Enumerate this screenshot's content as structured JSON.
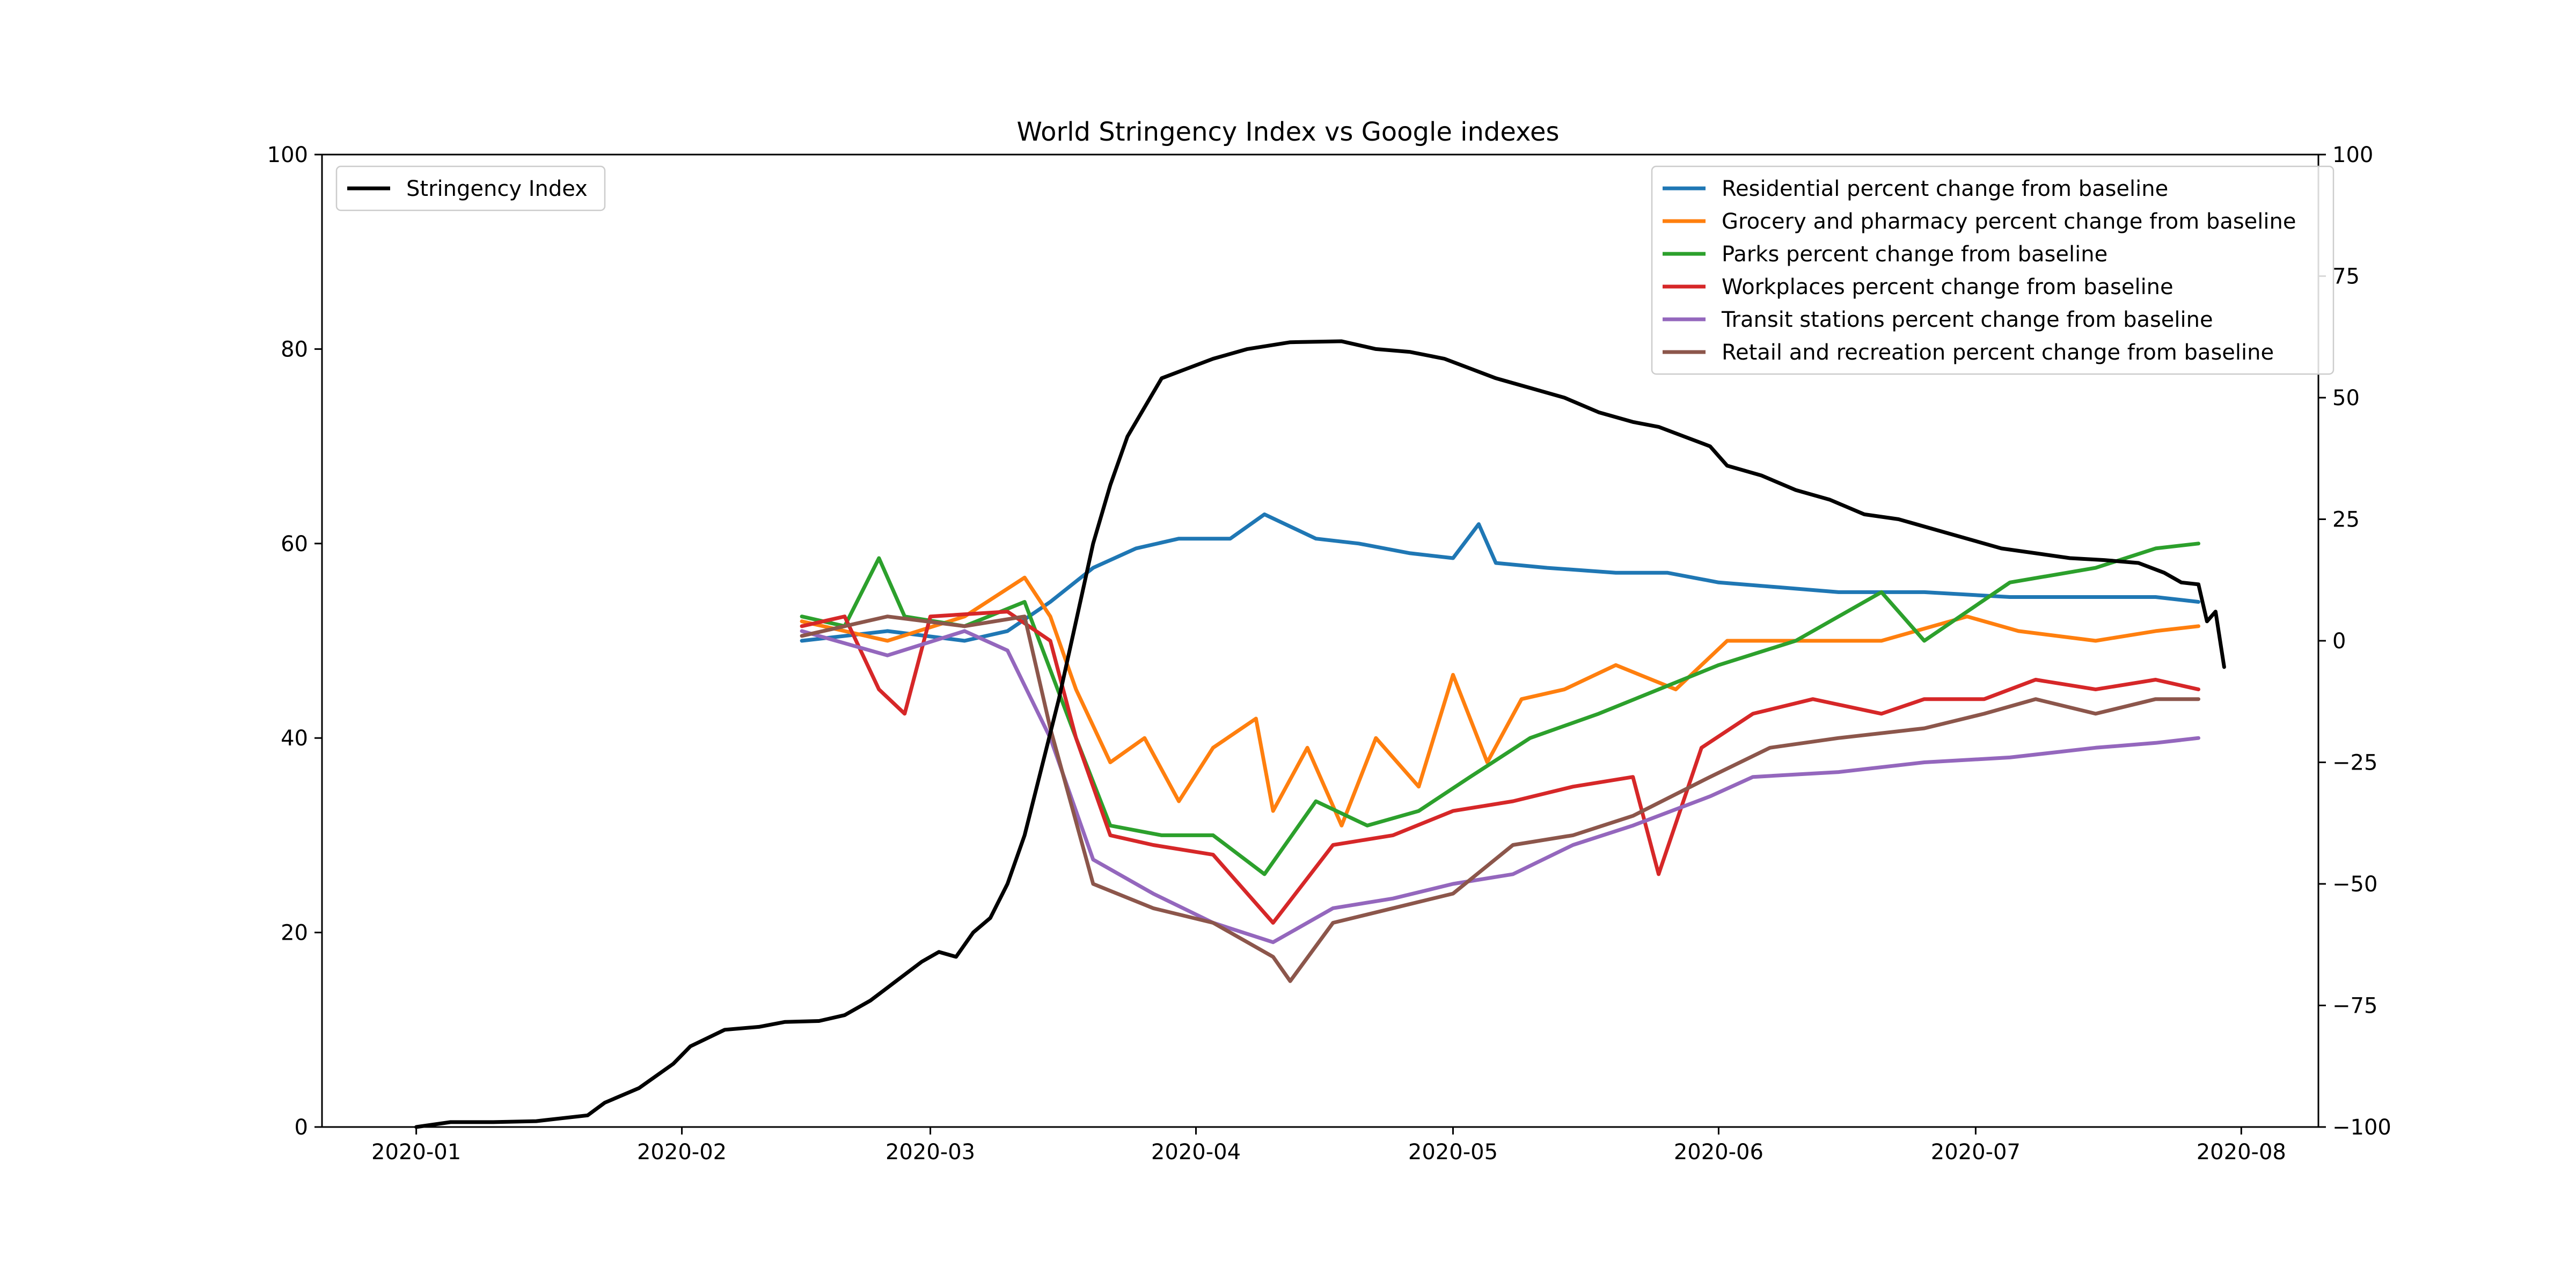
{
  "chart_data": {
    "type": "line",
    "title": "World Stringency Index vs Google indexes",
    "xlabel": "",
    "ylabel_left": "",
    "ylabel_right": "",
    "x_axis": {
      "type": "date",
      "range": [
        "2019-12-21",
        "2020-08-10"
      ],
      "ticks": [
        "2020-01-01",
        "2020-02-01",
        "2020-03-01",
        "2020-04-01",
        "2020-05-01",
        "2020-06-01",
        "2020-07-01",
        "2020-08-01"
      ],
      "tick_labels": [
        "2020-01",
        "2020-02",
        "2020-03",
        "2020-04",
        "2020-05",
        "2020-06",
        "2020-07",
        "2020-08"
      ]
    },
    "y_left": {
      "range": [
        0,
        100
      ],
      "ticks": [
        0,
        20,
        40,
        60,
        80,
        100
      ],
      "tick_labels": [
        "0",
        "20",
        "40",
        "60",
        "80",
        "100"
      ]
    },
    "y_right": {
      "range": [
        -100,
        100
      ],
      "ticks": [
        -100,
        -75,
        -50,
        -25,
        0,
        25,
        50,
        75,
        100
      ],
      "tick_labels": [
        "−100",
        "−75",
        "−50",
        "−25",
        "0",
        "25",
        "50",
        "75",
        "100"
      ]
    },
    "grid": false,
    "legend_left_placement": "upper-left",
    "legend_right_placement": "upper-right",
    "series_left": [
      {
        "name": "Stringency Index",
        "color": "#000000",
        "points": [
          [
            "2020-01-01",
            0.0
          ],
          [
            "2020-01-05",
            0.5
          ],
          [
            "2020-01-10",
            0.5
          ],
          [
            "2020-01-15",
            0.6
          ],
          [
            "2020-01-18",
            0.9
          ],
          [
            "2020-01-21",
            1.2
          ],
          [
            "2020-01-23",
            2.5
          ],
          [
            "2020-01-27",
            4.0
          ],
          [
            "2020-01-31",
            6.5
          ],
          [
            "2020-02-02",
            8.3
          ],
          [
            "2020-02-06",
            10.0
          ],
          [
            "2020-02-10",
            10.3
          ],
          [
            "2020-02-13",
            10.8
          ],
          [
            "2020-02-17",
            10.9
          ],
          [
            "2020-02-20",
            11.5
          ],
          [
            "2020-02-23",
            13.0
          ],
          [
            "2020-02-26",
            15.0
          ],
          [
            "2020-02-29",
            17.0
          ],
          [
            "2020-03-02",
            18.0
          ],
          [
            "2020-03-04",
            17.5
          ],
          [
            "2020-03-06",
            20.0
          ],
          [
            "2020-03-08",
            21.5
          ],
          [
            "2020-03-10",
            25.0
          ],
          [
            "2020-03-12",
            30.0
          ],
          [
            "2020-03-14",
            37.0
          ],
          [
            "2020-03-16",
            44.0
          ],
          [
            "2020-03-18",
            52.0
          ],
          [
            "2020-03-20",
            60.0
          ],
          [
            "2020-03-22",
            66.0
          ],
          [
            "2020-03-24",
            71.0
          ],
          [
            "2020-03-26",
            74.0
          ],
          [
            "2020-03-28",
            77.0
          ],
          [
            "2020-03-31",
            78.0
          ],
          [
            "2020-04-03",
            79.0
          ],
          [
            "2020-04-07",
            80.0
          ],
          [
            "2020-04-12",
            80.7
          ],
          [
            "2020-04-18",
            80.8
          ],
          [
            "2020-04-22",
            80.0
          ],
          [
            "2020-04-26",
            79.7
          ],
          [
            "2020-04-30",
            79.0
          ],
          [
            "2020-05-03",
            78.0
          ],
          [
            "2020-05-06",
            77.0
          ],
          [
            "2020-05-10",
            76.0
          ],
          [
            "2020-05-14",
            75.0
          ],
          [
            "2020-05-18",
            73.5
          ],
          [
            "2020-05-22",
            72.5
          ],
          [
            "2020-05-25",
            72.0
          ],
          [
            "2020-05-28",
            71.0
          ],
          [
            "2020-05-31",
            70.0
          ],
          [
            "2020-06-02",
            68.0
          ],
          [
            "2020-06-06",
            67.0
          ],
          [
            "2020-06-10",
            65.5
          ],
          [
            "2020-06-14",
            64.5
          ],
          [
            "2020-06-18",
            63.0
          ],
          [
            "2020-06-22",
            62.5
          ],
          [
            "2020-06-26",
            61.5
          ],
          [
            "2020-06-30",
            60.5
          ],
          [
            "2020-07-04",
            59.5
          ],
          [
            "2020-07-08",
            59.0
          ],
          [
            "2020-07-12",
            58.5
          ],
          [
            "2020-07-16",
            58.3
          ],
          [
            "2020-07-20",
            58.0
          ],
          [
            "2020-07-23",
            57.0
          ],
          [
            "2020-07-25",
            56.0
          ],
          [
            "2020-07-27",
            55.8
          ],
          [
            "2020-07-28",
            52.0
          ],
          [
            "2020-07-29",
            53.0
          ],
          [
            "2020-07-30",
            47.3
          ]
        ]
      }
    ],
    "series_right": [
      {
        "name": "Residential percent change from baseline",
        "color": "#1f77b4",
        "points": [
          [
            "2020-02-15",
            0
          ],
          [
            "2020-02-25",
            2
          ],
          [
            "2020-03-05",
            0
          ],
          [
            "2020-03-10",
            2
          ],
          [
            "2020-03-15",
            8
          ],
          [
            "2020-03-20",
            15
          ],
          [
            "2020-03-25",
            19
          ],
          [
            "2020-03-30",
            21
          ],
          [
            "2020-04-05",
            21
          ],
          [
            "2020-04-09",
            26
          ],
          [
            "2020-04-15",
            21
          ],
          [
            "2020-04-20",
            20
          ],
          [
            "2020-04-26",
            18
          ],
          [
            "2020-05-01",
            17
          ],
          [
            "2020-05-04",
            24
          ],
          [
            "2020-05-06",
            16
          ],
          [
            "2020-05-12",
            15
          ],
          [
            "2020-05-20",
            14
          ],
          [
            "2020-05-26",
            14
          ],
          [
            "2020-06-01",
            12
          ],
          [
            "2020-06-08",
            11
          ],
          [
            "2020-06-15",
            10
          ],
          [
            "2020-06-25",
            10
          ],
          [
            "2020-07-05",
            9
          ],
          [
            "2020-07-15",
            9
          ],
          [
            "2020-07-22",
            9
          ],
          [
            "2020-07-27",
            8
          ]
        ]
      },
      {
        "name": "Grocery and pharmacy percent change from baseline",
        "color": "#ff7f0e",
        "points": [
          [
            "2020-02-15",
            4
          ],
          [
            "2020-02-25",
            0
          ],
          [
            "2020-03-05",
            5
          ],
          [
            "2020-03-12",
            13
          ],
          [
            "2020-03-15",
            5
          ],
          [
            "2020-03-18",
            -10
          ],
          [
            "2020-03-22",
            -25
          ],
          [
            "2020-03-26",
            -20
          ],
          [
            "2020-03-30",
            -33
          ],
          [
            "2020-04-03",
            -22
          ],
          [
            "2020-04-08",
            -16
          ],
          [
            "2020-04-10",
            -35
          ],
          [
            "2020-04-14",
            -22
          ],
          [
            "2020-04-18",
            -38
          ],
          [
            "2020-04-22",
            -20
          ],
          [
            "2020-04-27",
            -30
          ],
          [
            "2020-05-01",
            -7
          ],
          [
            "2020-05-05",
            -25
          ],
          [
            "2020-05-09",
            -12
          ],
          [
            "2020-05-14",
            -10
          ],
          [
            "2020-05-20",
            -5
          ],
          [
            "2020-05-27",
            -10
          ],
          [
            "2020-06-02",
            0
          ],
          [
            "2020-06-10",
            0
          ],
          [
            "2020-06-20",
            0
          ],
          [
            "2020-06-30",
            5
          ],
          [
            "2020-07-06",
            2
          ],
          [
            "2020-07-15",
            0
          ],
          [
            "2020-07-22",
            2
          ],
          [
            "2020-07-27",
            3
          ]
        ]
      },
      {
        "name": "Parks percent change from baseline",
        "color": "#2ca02c",
        "points": [
          [
            "2020-02-15",
            5
          ],
          [
            "2020-02-20",
            3
          ],
          [
            "2020-02-24",
            17
          ],
          [
            "2020-02-27",
            5
          ],
          [
            "2020-03-05",
            3
          ],
          [
            "2020-03-12",
            8
          ],
          [
            "2020-03-18",
            -20
          ],
          [
            "2020-03-22",
            -38
          ],
          [
            "2020-03-28",
            -40
          ],
          [
            "2020-04-03",
            -40
          ],
          [
            "2020-04-09",
            -48
          ],
          [
            "2020-04-15",
            -33
          ],
          [
            "2020-04-21",
            -38
          ],
          [
            "2020-04-27",
            -35
          ],
          [
            "2020-05-03",
            -28
          ],
          [
            "2020-05-10",
            -20
          ],
          [
            "2020-05-18",
            -15
          ],
          [
            "2020-05-25",
            -10
          ],
          [
            "2020-06-01",
            -5
          ],
          [
            "2020-06-10",
            0
          ],
          [
            "2020-06-20",
            10
          ],
          [
            "2020-06-25",
            0
          ],
          [
            "2020-07-05",
            12
          ],
          [
            "2020-07-15",
            15
          ],
          [
            "2020-07-22",
            19
          ],
          [
            "2020-07-27",
            20
          ]
        ]
      },
      {
        "name": "Workplaces percent change from baseline",
        "color": "#d62728",
        "points": [
          [
            "2020-02-15",
            3
          ],
          [
            "2020-02-20",
            5
          ],
          [
            "2020-02-24",
            -10
          ],
          [
            "2020-02-27",
            -15
          ],
          [
            "2020-03-01",
            5
          ],
          [
            "2020-03-10",
            6
          ],
          [
            "2020-03-15",
            0
          ],
          [
            "2020-03-18",
            -20
          ],
          [
            "2020-03-22",
            -40
          ],
          [
            "2020-03-27",
            -42
          ],
          [
            "2020-04-03",
            -44
          ],
          [
            "2020-04-10",
            -58
          ],
          [
            "2020-04-17",
            -42
          ],
          [
            "2020-04-24",
            -40
          ],
          [
            "2020-05-01",
            -35
          ],
          [
            "2020-05-08",
            -33
          ],
          [
            "2020-05-15",
            -30
          ],
          [
            "2020-05-22",
            -28
          ],
          [
            "2020-05-25",
            -48
          ],
          [
            "2020-05-30",
            -22
          ],
          [
            "2020-06-05",
            -15
          ],
          [
            "2020-06-12",
            -12
          ],
          [
            "2020-06-20",
            -15
          ],
          [
            "2020-06-25",
            -12
          ],
          [
            "2020-07-02",
            -12
          ],
          [
            "2020-07-08",
            -8
          ],
          [
            "2020-07-15",
            -10
          ],
          [
            "2020-07-22",
            -8
          ],
          [
            "2020-07-27",
            -10
          ]
        ]
      },
      {
        "name": "Transit stations percent change from baseline",
        "color": "#9467bd",
        "points": [
          [
            "2020-02-15",
            2
          ],
          [
            "2020-02-25",
            -3
          ],
          [
            "2020-03-05",
            2
          ],
          [
            "2020-03-10",
            -2
          ],
          [
            "2020-03-15",
            -20
          ],
          [
            "2020-03-20",
            -45
          ],
          [
            "2020-03-27",
            -52
          ],
          [
            "2020-04-03",
            -58
          ],
          [
            "2020-04-10",
            -62
          ],
          [
            "2020-04-17",
            -55
          ],
          [
            "2020-04-24",
            -53
          ],
          [
            "2020-05-01",
            -50
          ],
          [
            "2020-05-08",
            -48
          ],
          [
            "2020-05-15",
            -42
          ],
          [
            "2020-05-22",
            -38
          ],
          [
            "2020-05-31",
            -32
          ],
          [
            "2020-06-05",
            -28
          ],
          [
            "2020-06-15",
            -27
          ],
          [
            "2020-06-25",
            -25
          ],
          [
            "2020-07-05",
            -24
          ],
          [
            "2020-07-15",
            -22
          ],
          [
            "2020-07-22",
            -21
          ],
          [
            "2020-07-27",
            -20
          ]
        ]
      },
      {
        "name": "Retail and recreation percent change from baseline",
        "color": "#8c564b",
        "points": [
          [
            "2020-02-15",
            1
          ],
          [
            "2020-02-25",
            5
          ],
          [
            "2020-03-05",
            3
          ],
          [
            "2020-03-12",
            5
          ],
          [
            "2020-03-15",
            -18
          ],
          [
            "2020-03-20",
            -50
          ],
          [
            "2020-03-27",
            -55
          ],
          [
            "2020-04-03",
            -58
          ],
          [
            "2020-04-07",
            -62
          ],
          [
            "2020-04-10",
            -65
          ],
          [
            "2020-04-12",
            -70
          ],
          [
            "2020-04-17",
            -58
          ],
          [
            "2020-04-24",
            -55
          ],
          [
            "2020-05-01",
            -52
          ],
          [
            "2020-05-08",
            -42
          ],
          [
            "2020-05-15",
            -40
          ],
          [
            "2020-05-22",
            -36
          ],
          [
            "2020-05-31",
            -28
          ],
          [
            "2020-06-07",
            -22
          ],
          [
            "2020-06-15",
            -20
          ],
          [
            "2020-06-25",
            -18
          ],
          [
            "2020-07-02",
            -15
          ],
          [
            "2020-07-08",
            -12
          ],
          [
            "2020-07-15",
            -15
          ],
          [
            "2020-07-22",
            -12
          ],
          [
            "2020-07-27",
            -12
          ]
        ]
      }
    ]
  }
}
